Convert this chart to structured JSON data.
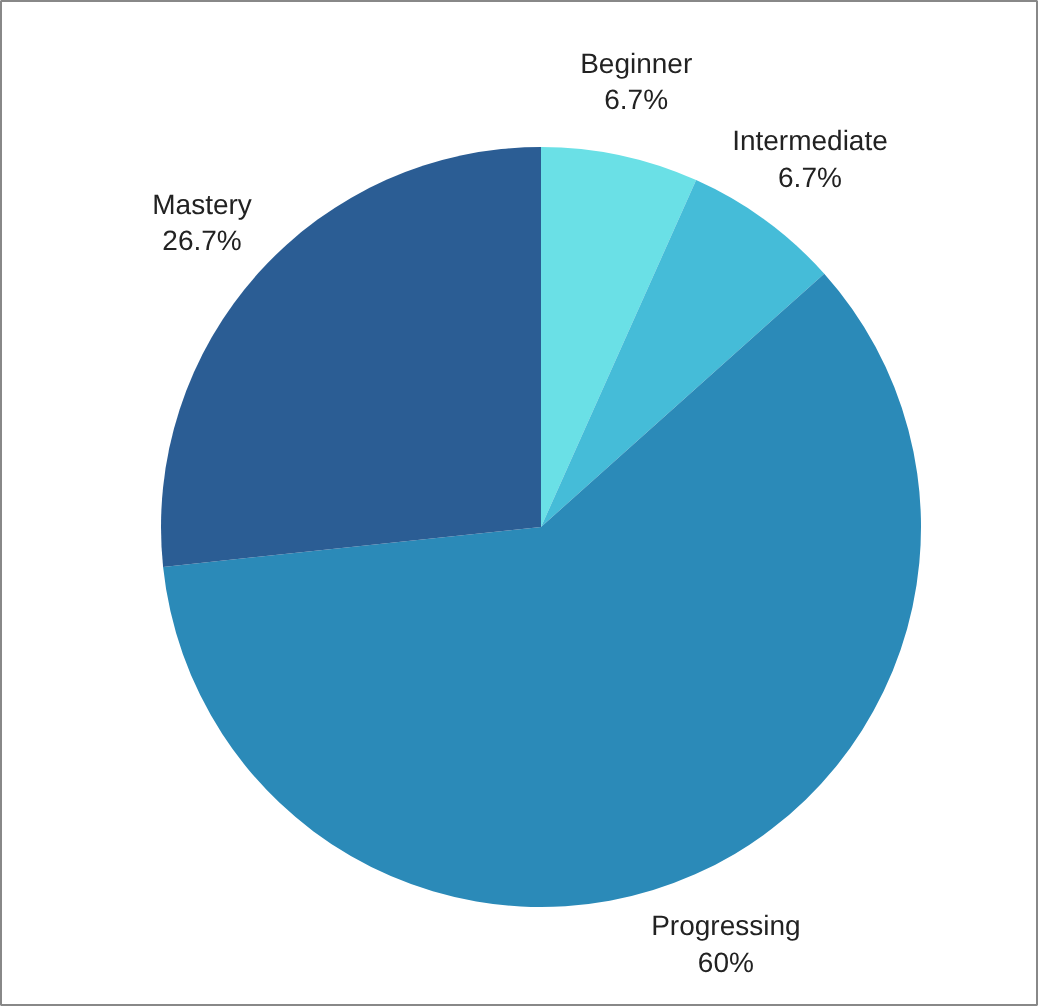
{
  "chart_data": {
    "type": "pie",
    "categories": [
      "Beginner",
      "Intermediate",
      "Progressing",
      "Mastery"
    ],
    "values": [
      6.7,
      6.7,
      60,
      26.7
    ],
    "colors": [
      "#6ae0e6",
      "#45bcd8",
      "#2b8ab8",
      "#2b5d94"
    ],
    "value_labels": [
      "6.7%",
      "6.7%",
      "60%",
      "26.7%"
    ]
  }
}
